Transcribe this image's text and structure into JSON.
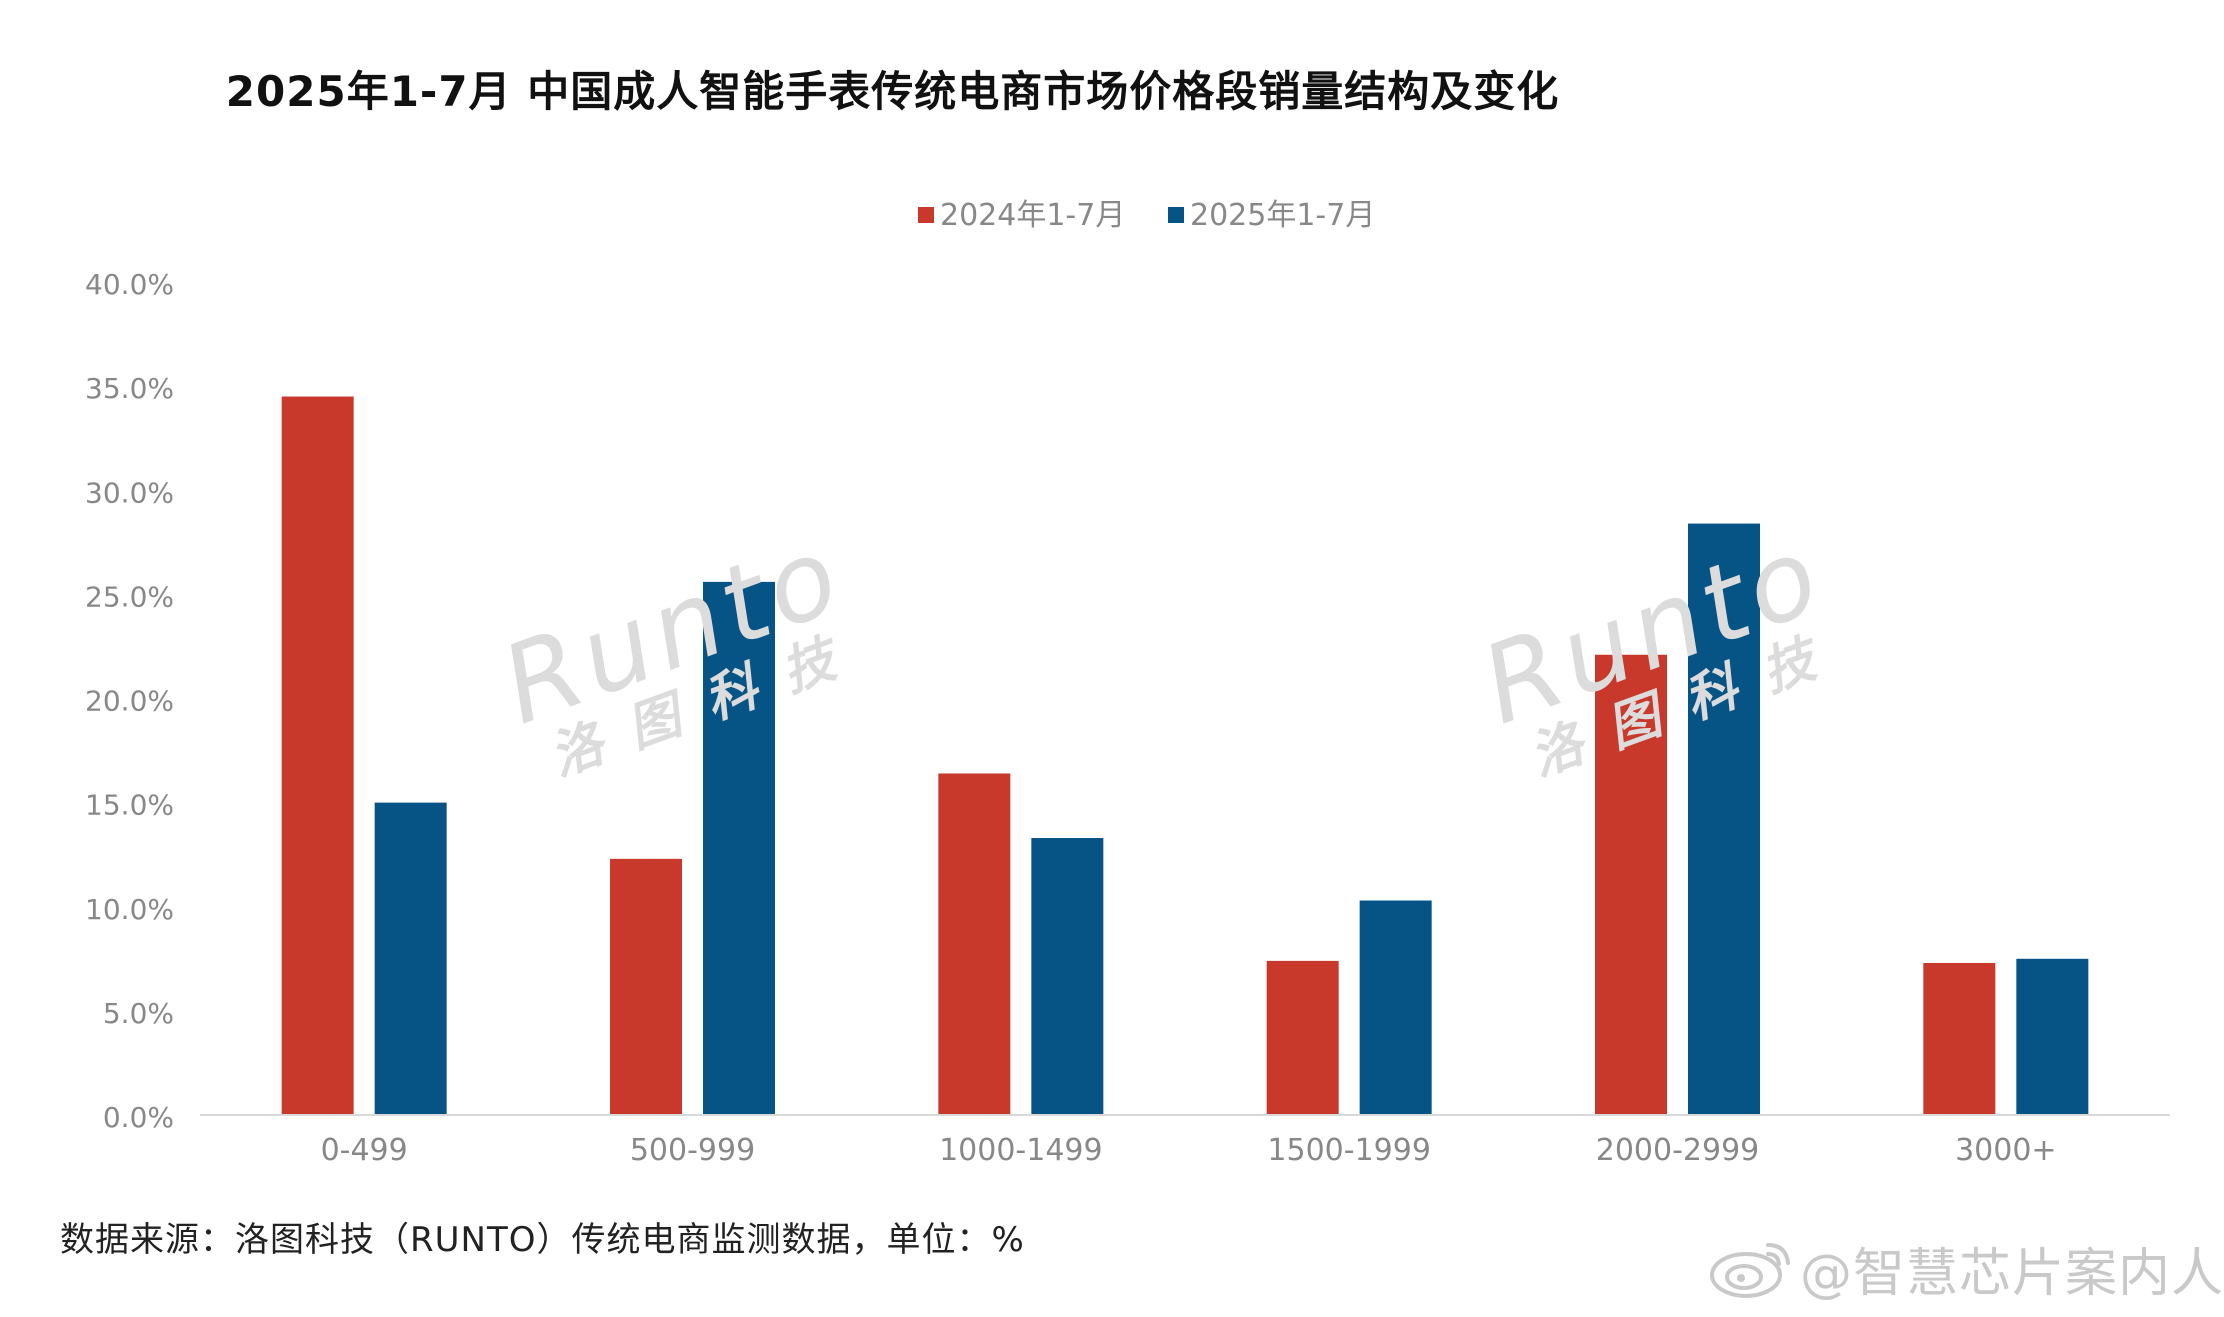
{
  "title": "2025年1-7月 中国成人智能手表传统电商市场价格段销量结构及变化",
  "source": "数据来源：洛图科技（RUNTO）传统电商监测数据，单位：%",
  "watermark": {
    "text": "@智慧芯片案内人",
    "logo": "weibo-logo-icon"
  },
  "chart_watermark": {
    "latin": "Runto",
    "cjk": "洛图科技"
  },
  "colors": {
    "series_2024": "#c8392c",
    "series_2025": "#065485",
    "axis_text": "#888888",
    "axis_line": "#d9d9d9"
  },
  "chart_data": {
    "type": "bar",
    "title": "2025年1-7月 中国成人智能手表传统电商市场价格段销量结构及变化",
    "categories": [
      "0-499",
      "500-999",
      "1000-1499",
      "1500-1999",
      "2000-2999",
      "3000+"
    ],
    "series": [
      {
        "name": "2024年1-7月",
        "values": [
          34.5,
          12.3,
          16.4,
          7.4,
          22.1,
          7.3
        ]
      },
      {
        "name": "2025年1-7月",
        "values": [
          15.0,
          25.6,
          13.3,
          10.3,
          28.4,
          7.5
        ]
      }
    ],
    "ylim": [
      0,
      40
    ],
    "yticks": [
      0,
      5,
      10,
      15,
      20,
      25,
      30,
      35,
      40
    ],
    "ytick_labels": [
      "0.0%",
      "5.0%",
      "10.0%",
      "15.0%",
      "20.0%",
      "25.0%",
      "30.0%",
      "35.0%",
      "40.0%"
    ],
    "legend_position": "top",
    "grid": false
  }
}
